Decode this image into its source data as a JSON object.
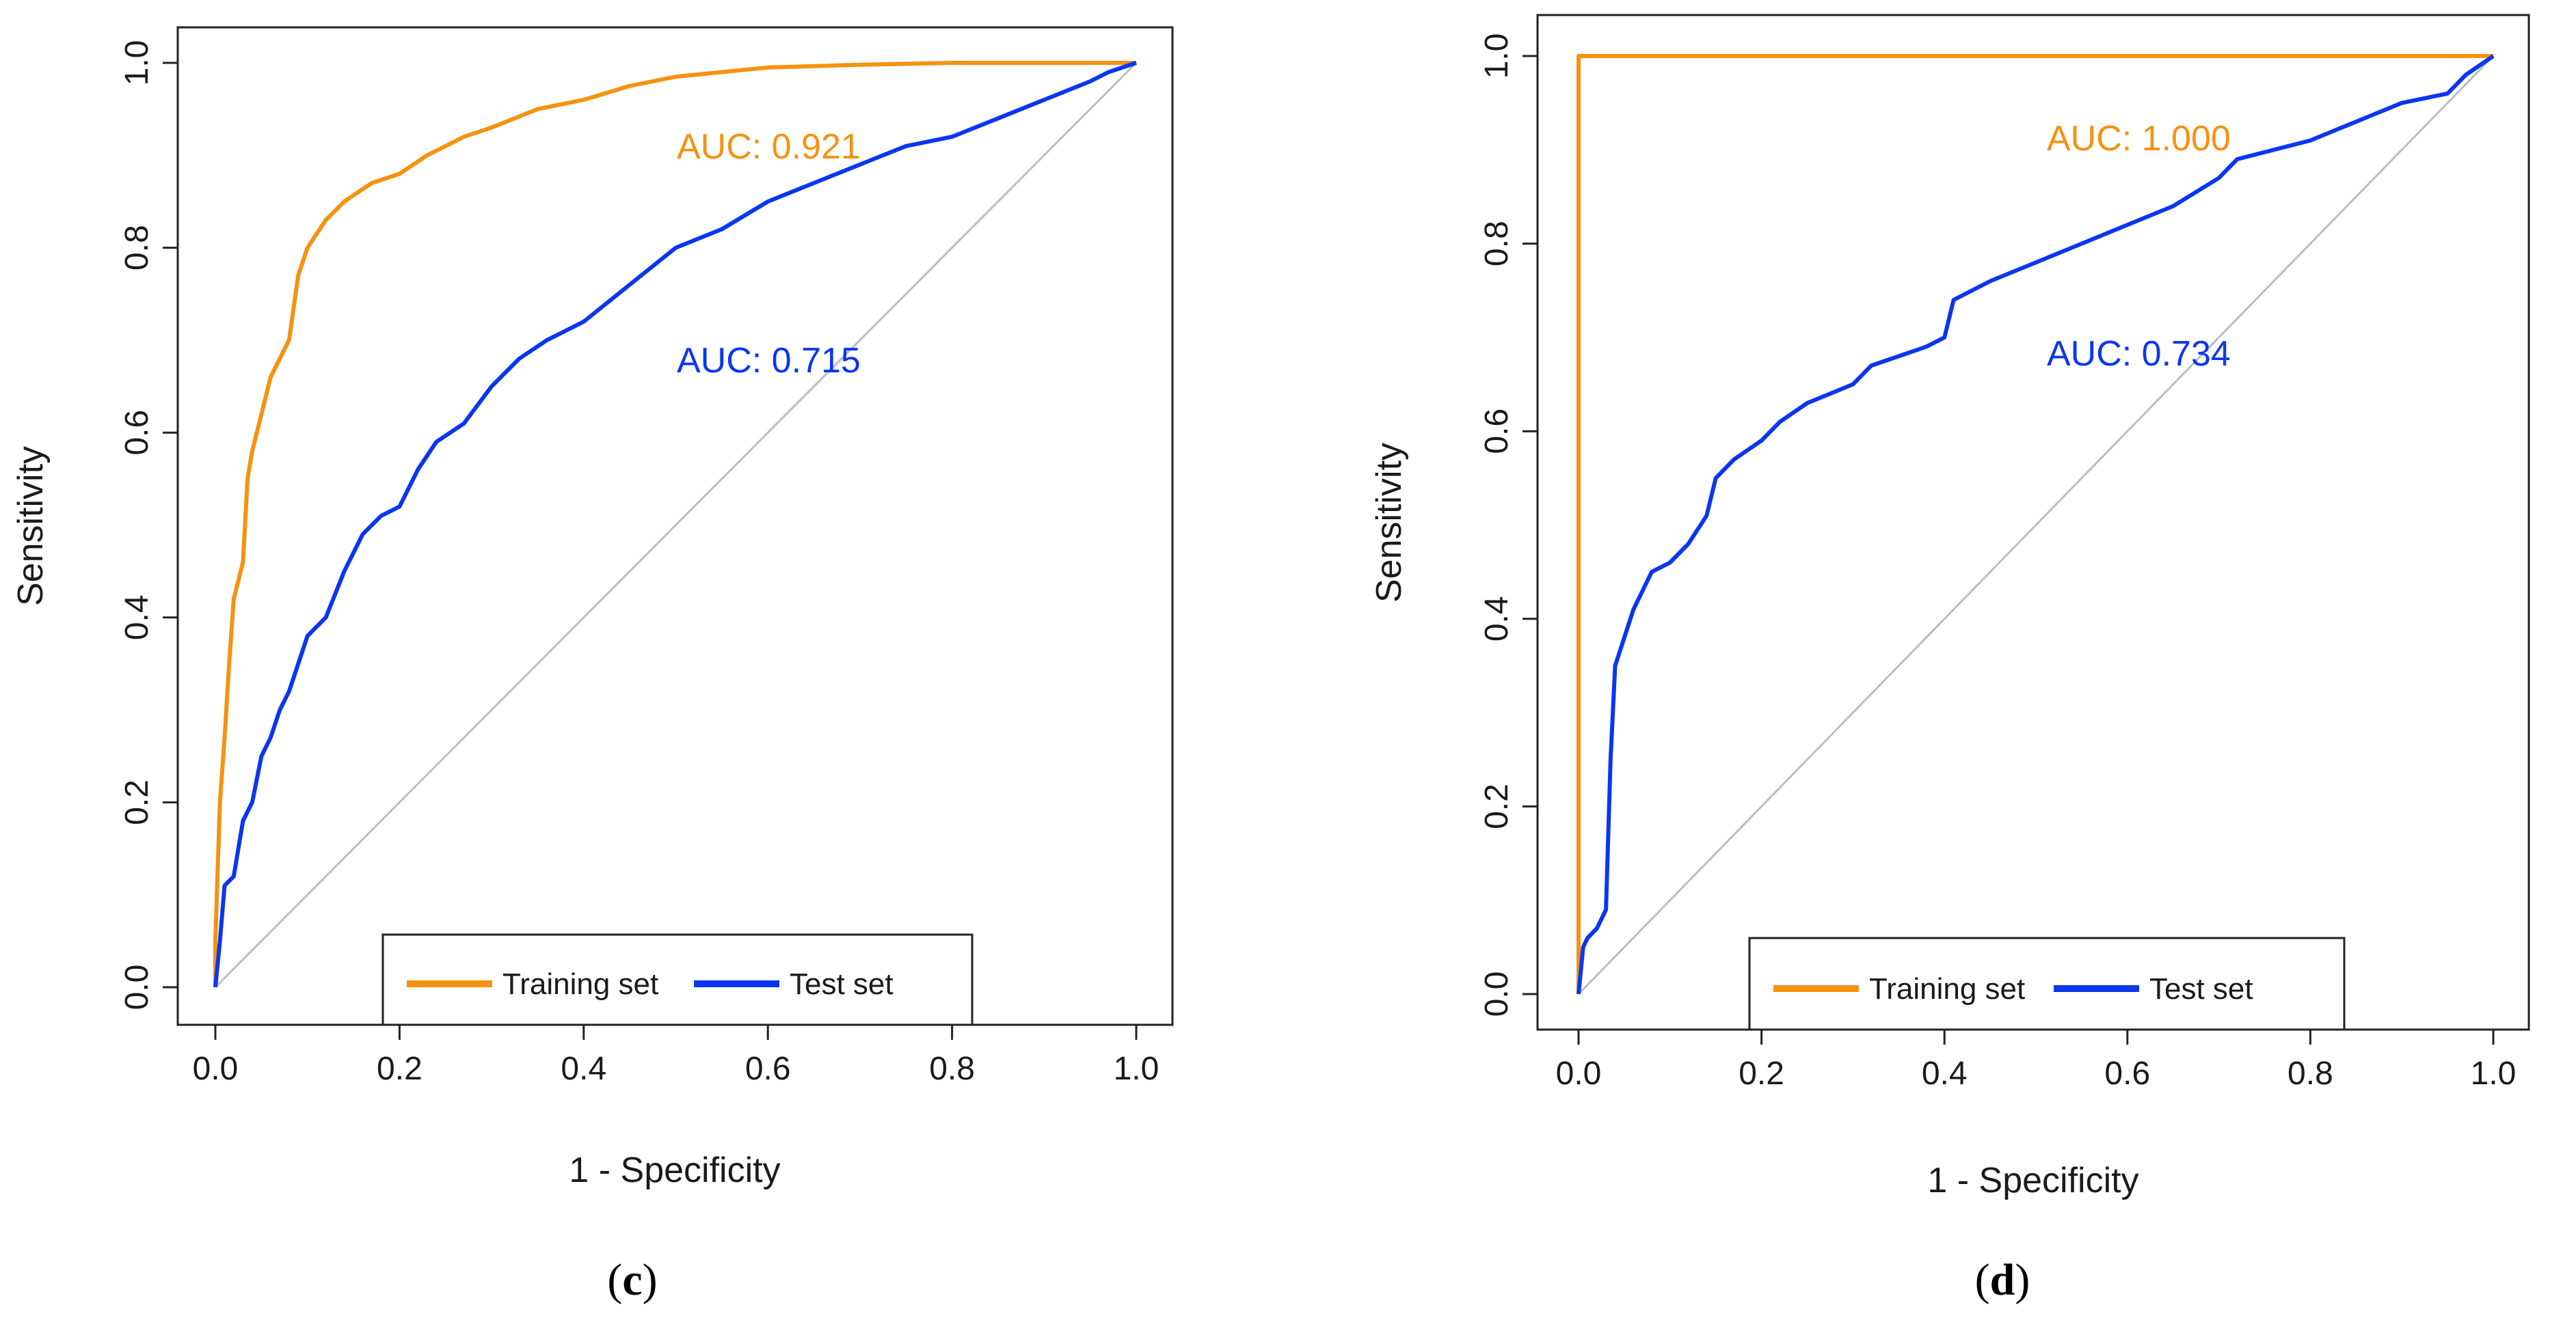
{
  "chart_data": [
    {
      "type": "line",
      "panel_label": "c",
      "xlabel": "1 - Specificity",
      "ylabel": "Sensitivity",
      "xlim": [
        0,
        1
      ],
      "ylim": [
        0,
        1
      ],
      "x_ticks": [
        0.0,
        0.2,
        0.4,
        0.6,
        0.8,
        1.0
      ],
      "y_ticks": [
        0.0,
        0.2,
        0.4,
        0.6,
        0.8,
        1.0
      ],
      "x_tick_labels": [
        "0.0",
        "0.2",
        "0.4",
        "0.6",
        "0.8",
        "1.0"
      ],
      "y_tick_labels": [
        "0.0",
        "0.2",
        "0.4",
        "0.6",
        "0.8",
        "1.0"
      ],
      "reference_line": {
        "x": [
          0,
          1
        ],
        "y": [
          0,
          1
        ],
        "color": "#bdbdbd"
      },
      "series": [
        {
          "name": "Training set",
          "color": "#f5920f",
          "auc_text": "AUC: 0.921",
          "x": [
            0,
            0,
            0.005,
            0.01,
            0.015,
            0.02,
            0.025,
            0.03,
            0.035,
            0.04,
            0.05,
            0.06,
            0.07,
            0.08,
            0.09,
            0.1,
            0.12,
            0.14,
            0.17,
            0.2,
            0.23,
            0.27,
            0.3,
            0.35,
            0.4,
            0.45,
            0.5,
            0.6,
            0.7,
            0.8,
            0.9,
            1.0
          ],
          "y": [
            0,
            0.05,
            0.2,
            0.27,
            0.35,
            0.42,
            0.44,
            0.46,
            0.55,
            0.58,
            0.62,
            0.66,
            0.68,
            0.7,
            0.77,
            0.8,
            0.83,
            0.85,
            0.87,
            0.88,
            0.9,
            0.92,
            0.93,
            0.95,
            0.96,
            0.975,
            0.985,
            0.995,
            0.998,
            1.0,
            1.0,
            1.0
          ]
        },
        {
          "name": "Test set",
          "color": "#0a36f0",
          "auc_text": "AUC: 0.715",
          "x": [
            0,
            0.005,
            0.01,
            0.02,
            0.03,
            0.04,
            0.05,
            0.06,
            0.07,
            0.08,
            0.1,
            0.12,
            0.14,
            0.16,
            0.18,
            0.2,
            0.22,
            0.24,
            0.27,
            0.3,
            0.33,
            0.36,
            0.4,
            0.45,
            0.5,
            0.55,
            0.6,
            0.65,
            0.7,
            0.75,
            0.8,
            0.85,
            0.9,
            0.95,
            0.97,
            1.0
          ],
          "y": [
            0,
            0.05,
            0.11,
            0.12,
            0.18,
            0.2,
            0.25,
            0.27,
            0.3,
            0.32,
            0.38,
            0.4,
            0.45,
            0.49,
            0.51,
            0.52,
            0.56,
            0.59,
            0.61,
            0.65,
            0.68,
            0.7,
            0.72,
            0.76,
            0.8,
            0.82,
            0.85,
            0.87,
            0.89,
            0.91,
            0.92,
            0.94,
            0.96,
            0.98,
            0.99,
            1.0
          ]
        }
      ],
      "legend": {
        "position": "bottom-center",
        "entries": [
          "Training set",
          "Test set"
        ]
      }
    },
    {
      "type": "line",
      "panel_label": "d",
      "xlabel": "1 - Specificity",
      "ylabel": "Sensitivity",
      "xlim": [
        0,
        1
      ],
      "ylim": [
        0,
        1
      ],
      "x_ticks": [
        0.0,
        0.2,
        0.4,
        0.6,
        0.8,
        1.0
      ],
      "y_ticks": [
        0.0,
        0.2,
        0.4,
        0.6,
        0.8,
        1.0
      ],
      "x_tick_labels": [
        "0.0",
        "0.2",
        "0.4",
        "0.6",
        "0.8",
        "1.0"
      ],
      "y_tick_labels": [
        "0.0",
        "0.2",
        "0.4",
        "0.6",
        "0.8",
        "1.0"
      ],
      "reference_line": {
        "x": [
          0,
          1
        ],
        "y": [
          0,
          1
        ],
        "color": "#bdbdbd"
      },
      "series": [
        {
          "name": "Training set",
          "color": "#f5920f",
          "auc_text": "AUC: 1.000",
          "x": [
            0,
            0,
            1.0
          ],
          "y": [
            0,
            1.0,
            1.0
          ]
        },
        {
          "name": "Test set",
          "color": "#0a36f0",
          "auc_text": "AUC: 0.734",
          "x": [
            0,
            0.005,
            0.01,
            0.02,
            0.03,
            0.035,
            0.04,
            0.05,
            0.06,
            0.07,
            0.08,
            0.1,
            0.12,
            0.14,
            0.15,
            0.17,
            0.2,
            0.22,
            0.25,
            0.3,
            0.32,
            0.35,
            0.38,
            0.4,
            0.41,
            0.45,
            0.5,
            0.55,
            0.6,
            0.65,
            0.7,
            0.72,
            0.8,
            0.85,
            0.9,
            0.95,
            0.97,
            1.0
          ],
          "y": [
            0,
            0.05,
            0.06,
            0.07,
            0.09,
            0.25,
            0.35,
            0.38,
            0.41,
            0.43,
            0.45,
            0.46,
            0.48,
            0.51,
            0.55,
            0.57,
            0.59,
            0.61,
            0.63,
            0.65,
            0.67,
            0.68,
            0.69,
            0.7,
            0.74,
            0.76,
            0.78,
            0.8,
            0.82,
            0.84,
            0.87,
            0.89,
            0.91,
            0.93,
            0.95,
            0.96,
            0.98,
            1.0
          ]
        }
      ],
      "legend": {
        "position": "bottom-center",
        "entries": [
          "Training set",
          "Test set"
        ]
      }
    }
  ]
}
